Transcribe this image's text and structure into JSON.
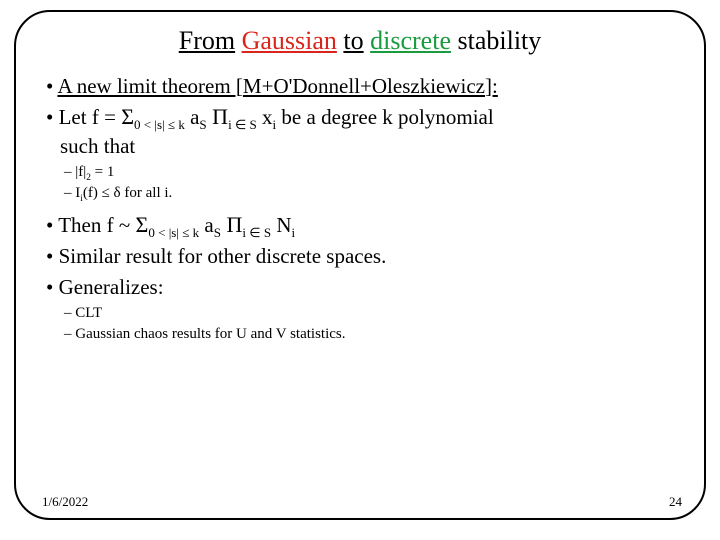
{
  "title": {
    "w1": "From",
    "w2": "Gaussian",
    "w3": "to",
    "w4": "discrete",
    "w5": "stability"
  },
  "bullets": {
    "b1_pre": "A new limit theorem [",
    "b1_auth": "M+O'Donnell+Oleszkiewicz",
    "b1_post": "]:",
    "b2_pre": "Let f = ",
    "b2_sum": "Σ",
    "b2_sub1": "0 < |s| ≤ k",
    "b2_as": " a",
    "b2_asub": "S",
    "b2_prod": " Π",
    "b2_psub": "i ∈ S",
    "b2_x": " x",
    "b2_xsub": "i",
    "b2_tail": " be a degree k polynomial",
    "b2_line2": "such that",
    "s1": "|f|",
    "s1sub": "2",
    "s1tail": " = 1",
    "s2_I": "I",
    "s2_isub": "i",
    "s2_tail": "(f) ≤ δ for all i.",
    "b3_pre": "Then f ~ ",
    "b3_sum": "Σ",
    "b3_sub1": "0 < |s| ≤ k",
    "b3_as": " a",
    "b3_asub": "S",
    "b3_prod": " Π",
    "b3_psub": "i ∈ S",
    "b3_N": " N",
    "b3_Nsub": "i",
    "b4": "Similar result for other discrete spaces.",
    "b5": "Generalizes:",
    "s3": "CLT",
    "s4": "Gaussian chaos results for U and V statistics."
  },
  "footer": {
    "date": "1/6/2022",
    "page": "24"
  }
}
